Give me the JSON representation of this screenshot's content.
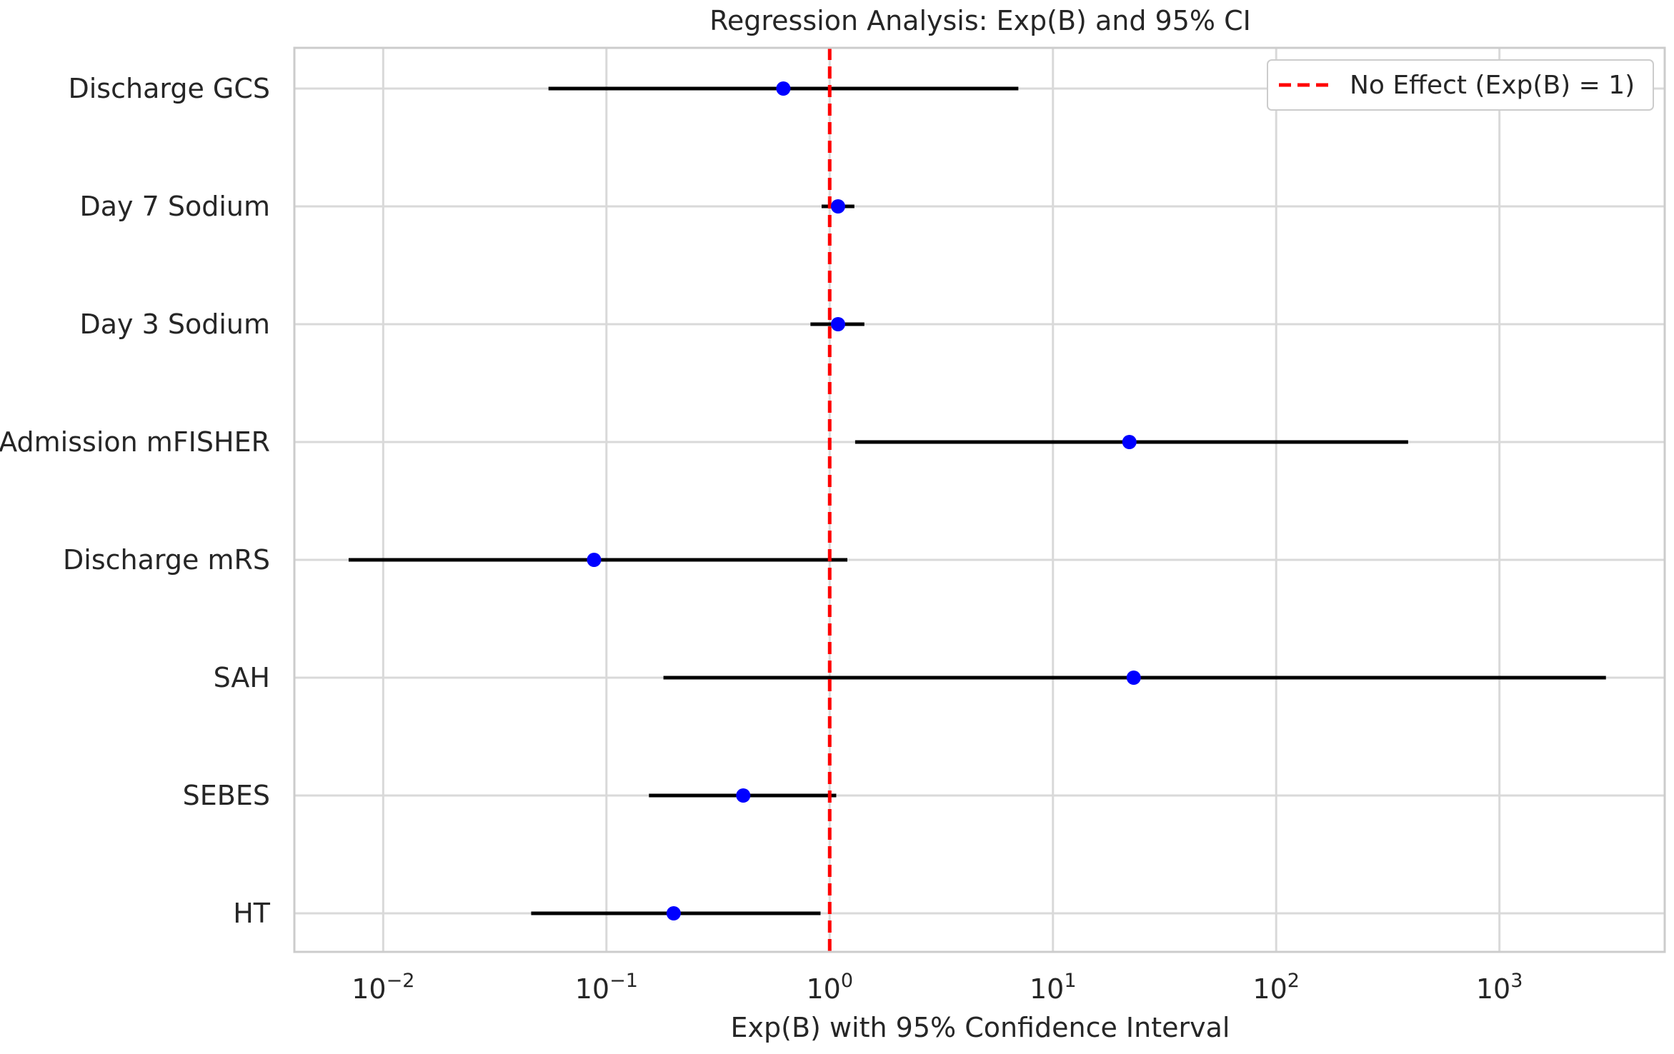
{
  "chart_data": {
    "type": "forest",
    "title": "Regression Analysis: Exp(B) and 95% CI",
    "xlabel": "Exp(B) with 95% Confidence Interval",
    "ylabel": "",
    "x_scale": "log",
    "xlim": [
      0.004,
      5500
    ],
    "x_ticks": [
      {
        "value": 0.01,
        "base": "10",
        "exp": "−2"
      },
      {
        "value": 0.1,
        "base": "10",
        "exp": "−1"
      },
      {
        "value": 1,
        "base": "10",
        "exp": "0"
      },
      {
        "value": 10,
        "base": "10",
        "exp": "1"
      },
      {
        "value": 100,
        "base": "10",
        "exp": "2"
      },
      {
        "value": 1000,
        "base": "10",
        "exp": "3"
      }
    ],
    "grid": true,
    "reference_line": {
      "value": 1,
      "label": "No Effect (Exp(B) = 1)",
      "color": "#ff0000",
      "style": "dashed"
    },
    "legend": {
      "placement": "top-right"
    },
    "rows": [
      {
        "label": "Discharge GCS",
        "exp_b": 0.62,
        "ci_low": 0.055,
        "ci_high": 7.0
      },
      {
        "label": "Day 7 Sodium",
        "exp_b": 1.09,
        "ci_low": 0.92,
        "ci_high": 1.29
      },
      {
        "label": "Day 3 Sodium",
        "exp_b": 1.09,
        "ci_low": 0.82,
        "ci_high": 1.43
      },
      {
        "label": "Admission mFISHER",
        "exp_b": 22.0,
        "ci_low": 1.3,
        "ci_high": 390
      },
      {
        "label": "Discharge mRS",
        "exp_b": 0.088,
        "ci_low": 0.007,
        "ci_high": 1.2
      },
      {
        "label": "SAH",
        "exp_b": 23.0,
        "ci_low": 0.18,
        "ci_high": 3000
      },
      {
        "label": "SEBES",
        "exp_b": 0.41,
        "ci_low": 0.155,
        "ci_high": 1.07
      },
      {
        "label": "HT",
        "exp_b": 0.2,
        "ci_low": 0.046,
        "ci_high": 0.91
      }
    ],
    "colors": {
      "point": "#0000ff",
      "ci": "#000000",
      "grid": "#d9d9d9",
      "frame": "#cccccc",
      "reference": "#ff0000"
    }
  }
}
